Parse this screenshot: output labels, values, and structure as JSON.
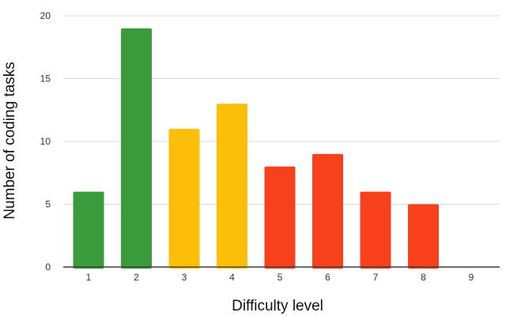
{
  "chart_data": {
    "type": "bar",
    "categories": [
      "1",
      "2",
      "3",
      "4",
      "5",
      "6",
      "7",
      "8",
      "9"
    ],
    "values": [
      6,
      19,
      11,
      13,
      8,
      9,
      6,
      5,
      0
    ],
    "bar_colors": [
      "#3a9b3d",
      "#3a9b3d",
      "#fbbf0a",
      "#fbbf0a",
      "#f7401c",
      "#f7401c",
      "#f7401c",
      "#f7401c",
      "#f7401c"
    ],
    "xlabel": "Difficulty level",
    "ylabel": "Number of coding tasks",
    "ylim": [
      0,
      20
    ],
    "yticks": [
      0,
      5,
      10,
      15,
      20
    ],
    "grid": true,
    "legend": "none"
  }
}
